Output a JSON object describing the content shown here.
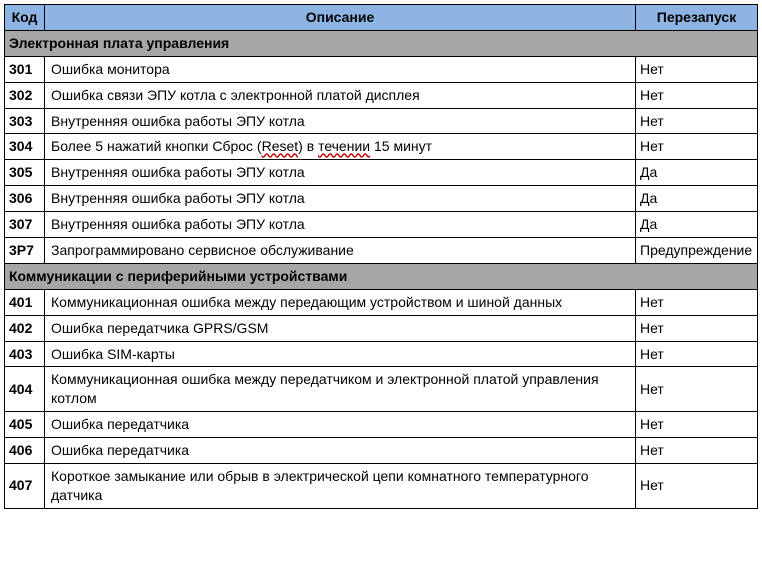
{
  "columns": {
    "code": "Код",
    "desc": "Описание",
    "restart": "Перезапуск"
  },
  "sections": [
    {
      "title": "Электронная плата управления",
      "rows": [
        {
          "code": "301",
          "desc_html": "Ошибка монитора",
          "restart": "Нет"
        },
        {
          "code": "302",
          "desc_html": "Ошибка связи ЭПУ котла с электронной платой дисплея",
          "restart": "Нет"
        },
        {
          "code": "303",
          "desc_html": "Внутренняя ошибка работы ЭПУ котла",
          "restart": "Нет"
        },
        {
          "code": "304",
          "desc_html": "Более 5 нажатий кнопки Сброс (<span class=\"redund\">Reset</span>) в <span class=\"redund\">течении</span> 15 минут",
          "restart": "Нет"
        },
        {
          "code": "305",
          "desc_html": "Внутренняя ошибка работы ЭПУ котла",
          "restart": "Да"
        },
        {
          "code": "306",
          "desc_html": "Внутренняя ошибка работы ЭПУ котла",
          "restart": "Да"
        },
        {
          "code": "307",
          "desc_html": "Внутренняя ошибка работы ЭПУ котла",
          "restart": "Да"
        },
        {
          "code": "3P7",
          "desc_html": "Запрограммировано сервисное обслуживание",
          "restart": "Предупреждение"
        }
      ]
    },
    {
      "title": "Коммуникации с периферийными устройствами",
      "rows": [
        {
          "code": "401",
          "desc_html": "Коммуникационная ошибка между передающим устройством и шиной данных",
          "restart": "Нет"
        },
        {
          "code": "402",
          "desc_html": "Ошибка передатчика GPRS/GSM",
          "restart": "Нет"
        },
        {
          "code": "403",
          "desc_html": "Ошибка SIM-карты",
          "restart": "Нет"
        },
        {
          "code": "404",
          "desc_html": "Коммуникационная ошибка между передатчиком и электронной платой управления котлом",
          "restart": "Нет"
        },
        {
          "code": "405",
          "desc_html": "Ошибка передатчика",
          "restart": "Нет"
        },
        {
          "code": "406",
          "desc_html": "Ошибка передатчика",
          "restart": "Нет"
        },
        {
          "code": "407",
          "desc_html": "Короткое замыкание или обрыв в электрической цепи комнатного температурного датчика",
          "restart": "Нет"
        }
      ]
    }
  ]
}
